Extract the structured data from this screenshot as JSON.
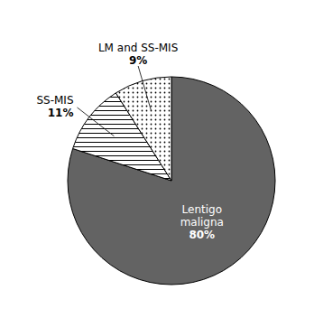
{
  "chart_data": {
    "type": "pie",
    "categories": [
      "Lentigo\nmaligna",
      "SS-MIS",
      "LM and SS-MIS"
    ],
    "values": [
      80,
      11,
      9
    ],
    "value_labels": [
      "80%",
      "11%",
      "9%"
    ],
    "colors": [
      "#636363",
      "white",
      "white"
    ],
    "data_labels": true
  }
}
